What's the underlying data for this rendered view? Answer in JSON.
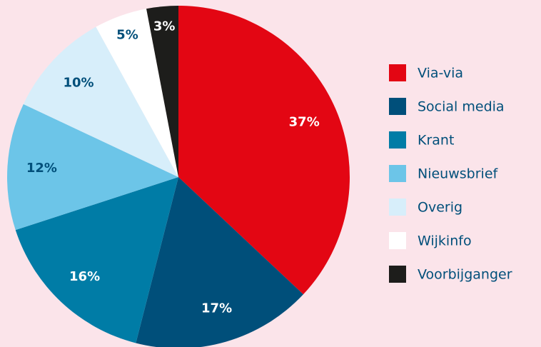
{
  "chart_data": {
    "type": "pie",
    "categories": [
      "Via-via",
      "Social media",
      "Krant",
      "Nieuwsbrief",
      "Overig",
      "Wijkinfo",
      "Voorbijganger"
    ],
    "values": [
      37,
      17,
      16,
      12,
      10,
      5,
      3
    ],
    "value_labels": [
      "37%",
      "17%",
      "16%",
      "12%",
      "10%",
      "5%",
      "3%"
    ],
    "colors": [
      "#e30613",
      "#004f7a",
      "#007ca6",
      "#6cc5e8",
      "#d7eefa",
      "#ffffff",
      "#1d1d1b"
    ],
    "label_colors": [
      "#ffffff",
      "#ffffff",
      "#ffffff",
      "#004f7a",
      "#004f7a",
      "#004f7a",
      "#ffffff"
    ],
    "legend": "right"
  }
}
